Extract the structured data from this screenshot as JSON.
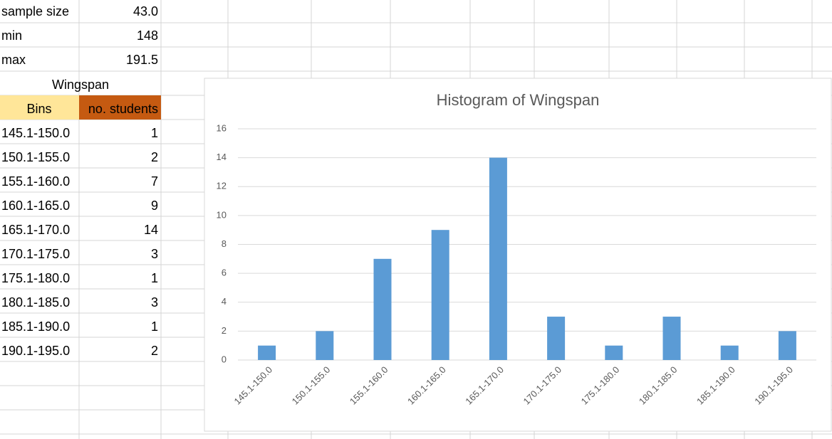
{
  "sheet": {
    "stats": [
      [
        "sample size",
        "43.0"
      ],
      [
        "min",
        148
      ],
      [
        "max",
        191.5
      ]
    ],
    "table": {
      "title": "Wingspan",
      "headers": [
        "Bins",
        "no. students"
      ],
      "rows": [
        [
          "145.1-150.0",
          1
        ],
        [
          "150.1-155.0",
          2
        ],
        [
          "155.1-160.0",
          7
        ],
        [
          "160.1-165.0",
          9
        ],
        [
          "165.1-170.0",
          14
        ],
        [
          "170.1-175.0",
          3
        ],
        [
          "175.1-180.0",
          1
        ],
        [
          "180.1-185.0",
          3
        ],
        [
          "185.1-190.0",
          1
        ],
        [
          "190.1-195.0",
          2
        ]
      ]
    }
  },
  "chart_data": {
    "type": "bar",
    "title": "Histogram of Wingspan",
    "categories": [
      "145.1-150.0",
      "150.1-155.0",
      "155.1-160.0",
      "160.1-165.0",
      "165.1-170.0",
      "170.1-175.0",
      "175.1-180.0",
      "180.1-185.0",
      "185.1-190.0",
      "190.1-195.0"
    ],
    "values": [
      1,
      2,
      7,
      9,
      14,
      3,
      1,
      3,
      1,
      2
    ],
    "color": "#5b9bd5",
    "ylim": [
      0,
      16
    ],
    "yticks": [
      0,
      2,
      4,
      6,
      8,
      10,
      12,
      14,
      16
    ],
    "grid": true
  }
}
